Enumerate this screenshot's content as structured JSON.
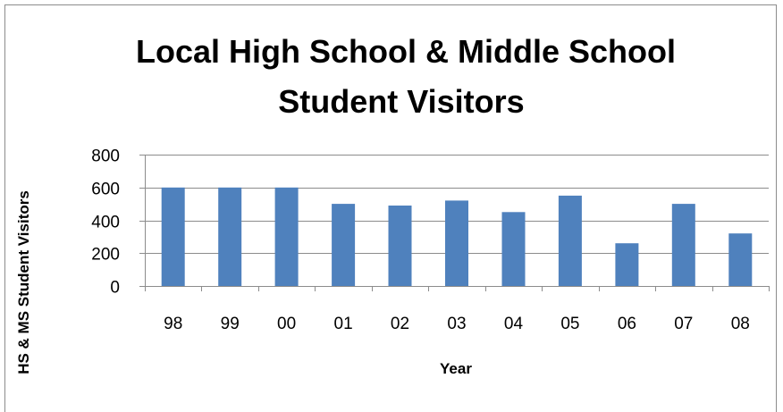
{
  "chart_data": {
    "type": "bar",
    "title_lines": [
      "Local High School & Middle School",
      "Student Visitors"
    ],
    "xlabel": "Year",
    "ylabel": "HS & MS Student Visitors",
    "categories": [
      "98",
      "99",
      "00",
      "01",
      "02",
      "03",
      "04",
      "05",
      "06",
      "07",
      "08"
    ],
    "values": [
      600,
      600,
      600,
      500,
      490,
      520,
      450,
      550,
      260,
      500,
      320
    ],
    "ylim": [
      0,
      800
    ],
    "yticks": [
      0,
      200,
      400,
      600,
      800
    ],
    "grid": true,
    "legend": "none",
    "bar_color": "#4f81bd"
  }
}
